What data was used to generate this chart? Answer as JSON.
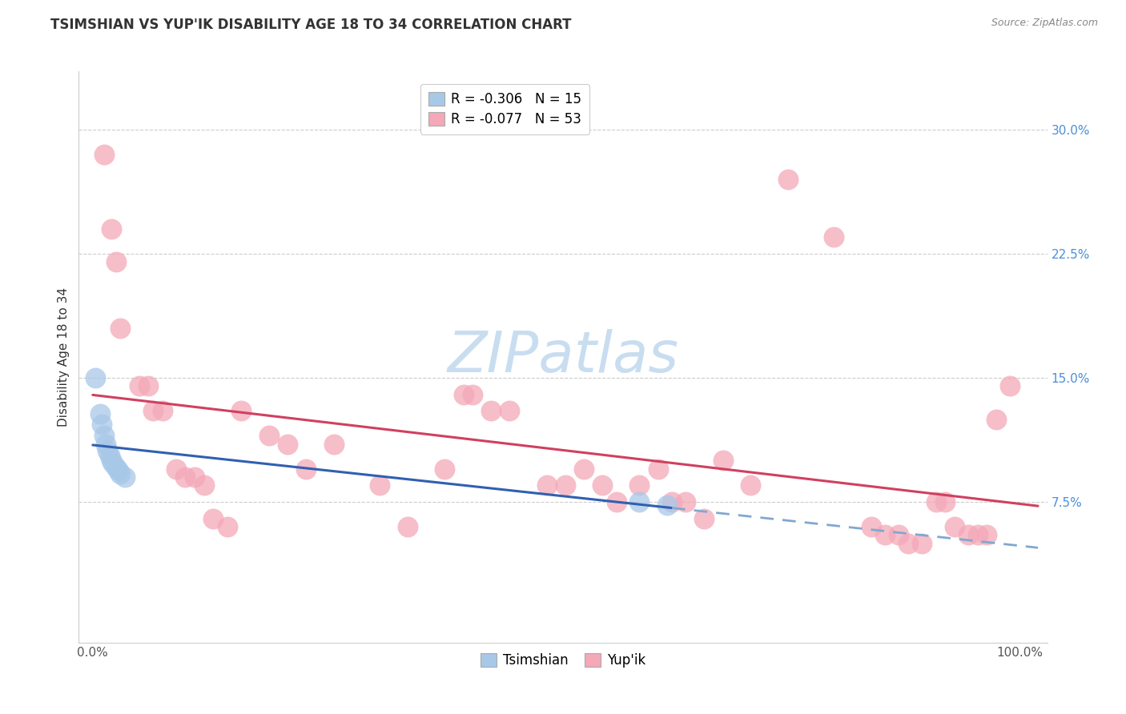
{
  "title": "TSIMSHIAN VS YUP'IK DISABILITY AGE 18 TO 34 CORRELATION CHART",
  "source": "Source: ZipAtlas.com",
  "ylabel": "Disability Age 18 to 34",
  "tsimshian_color": "#a8c8e8",
  "yupik_color": "#f4a8b8",
  "tsimshian_line_color": "#3060b0",
  "yupik_line_color": "#d04060",
  "tsimshian_dash_color": "#80a8d0",
  "bg_color": "#ffffff",
  "watermark_color": "#c8ddf0",
  "ytick_color": "#4a90d9",
  "xtick_color": "#555555",
  "tsimshian_x": [
    0.003,
    0.008,
    0.01,
    0.012,
    0.014,
    0.016,
    0.018,
    0.02,
    0.022,
    0.025,
    0.028,
    0.03,
    0.035,
    0.59,
    0.62
  ],
  "tsimshian_y": [
    0.15,
    0.128,
    0.122,
    0.115,
    0.11,
    0.106,
    0.103,
    0.1,
    0.098,
    0.096,
    0.094,
    0.092,
    0.09,
    0.075,
    0.073
  ],
  "yupik_x": [
    0.012,
    0.02,
    0.025,
    0.03,
    0.05,
    0.06,
    0.065,
    0.075,
    0.09,
    0.1,
    0.11,
    0.12,
    0.13,
    0.145,
    0.16,
    0.19,
    0.21,
    0.23,
    0.26,
    0.31,
    0.34,
    0.38,
    0.4,
    0.41,
    0.43,
    0.45,
    0.49,
    0.51,
    0.53,
    0.55,
    0.565,
    0.59,
    0.61,
    0.625,
    0.64,
    0.66,
    0.68,
    0.71,
    0.75,
    0.8,
    0.84,
    0.855,
    0.87,
    0.88,
    0.895,
    0.91,
    0.92,
    0.93,
    0.945,
    0.955,
    0.965,
    0.975,
    0.99
  ],
  "yupik_y": [
    0.285,
    0.24,
    0.22,
    0.18,
    0.145,
    0.145,
    0.13,
    0.13,
    0.095,
    0.09,
    0.09,
    0.085,
    0.065,
    0.06,
    0.13,
    0.115,
    0.11,
    0.095,
    0.11,
    0.085,
    0.06,
    0.095,
    0.14,
    0.14,
    0.13,
    0.13,
    0.085,
    0.085,
    0.095,
    0.085,
    0.075,
    0.085,
    0.095,
    0.075,
    0.075,
    0.065,
    0.1,
    0.085,
    0.27,
    0.235,
    0.06,
    0.055,
    0.055,
    0.05,
    0.05,
    0.075,
    0.075,
    0.06,
    0.055,
    0.055,
    0.055,
    0.125,
    0.145
  ],
  "xlim": [
    -0.015,
    1.03
  ],
  "ylim": [
    -0.01,
    0.335
  ],
  "yticks": [
    0.075,
    0.15,
    0.225,
    0.3
  ],
  "ytick_labels": [
    "7.5%",
    "15.0%",
    "22.5%",
    "30.0%"
  ],
  "xticks": [
    0.0,
    1.0
  ],
  "xtick_labels": [
    "0.0%",
    "100.0%"
  ],
  "scatter_size": 350,
  "scatter_alpha": 0.75,
  "legend1_labels": [
    "R = -0.306   N = 15",
    "R = -0.077   N = 53"
  ],
  "legend2_labels": [
    "Tsimshian",
    "Yup'ik"
  ],
  "title_fontsize": 12,
  "source_fontsize": 9,
  "tick_fontsize": 11,
  "ylabel_fontsize": 11
}
